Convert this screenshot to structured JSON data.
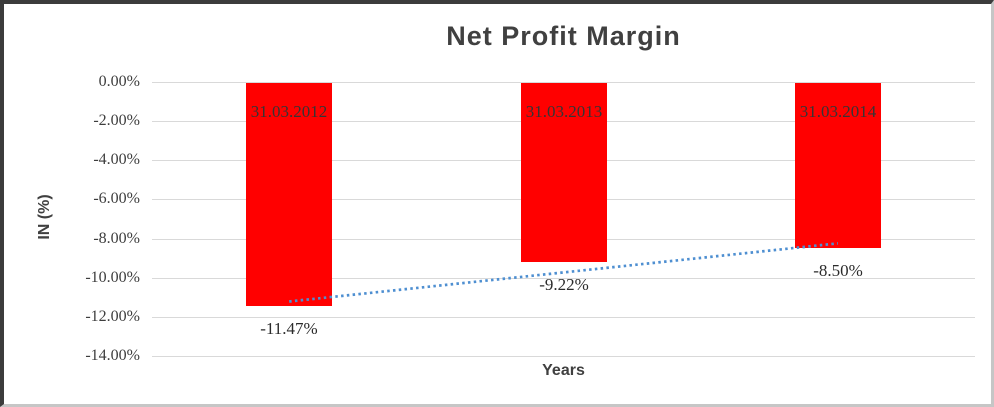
{
  "chart_data": {
    "type": "bar",
    "title": "Net Profit Margin",
    "xlabel": "Years",
    "ylabel": "IN (%)",
    "categories": [
      "31.03.2012",
      "31.03.2013",
      "31.03.2014"
    ],
    "values": [
      -11.47,
      -9.22,
      -8.5
    ],
    "data_labels": [
      "-11.47%",
      "-9.22%",
      "-8.50%"
    ],
    "y_ticks": [
      {
        "value": 0,
        "label": "0.00%"
      },
      {
        "value": -2,
        "label": "-2.00%"
      },
      {
        "value": -4,
        "label": "-4.00%"
      },
      {
        "value": -6,
        "label": "-6.00%"
      },
      {
        "value": -8,
        "label": "-8.00%"
      },
      {
        "value": -10,
        "label": "-10.00%"
      },
      {
        "value": -12,
        "label": "-12.00%"
      },
      {
        "value": -14,
        "label": "-14.00%"
      }
    ],
    "ylim": [
      -14,
      0
    ],
    "grid": true,
    "legend": false,
    "bar_color": "#ff0000",
    "gridline_color": "#d9d9d9",
    "trendline": {
      "type": "linear",
      "style": "dotted",
      "color": "#4e8fd1"
    }
  }
}
